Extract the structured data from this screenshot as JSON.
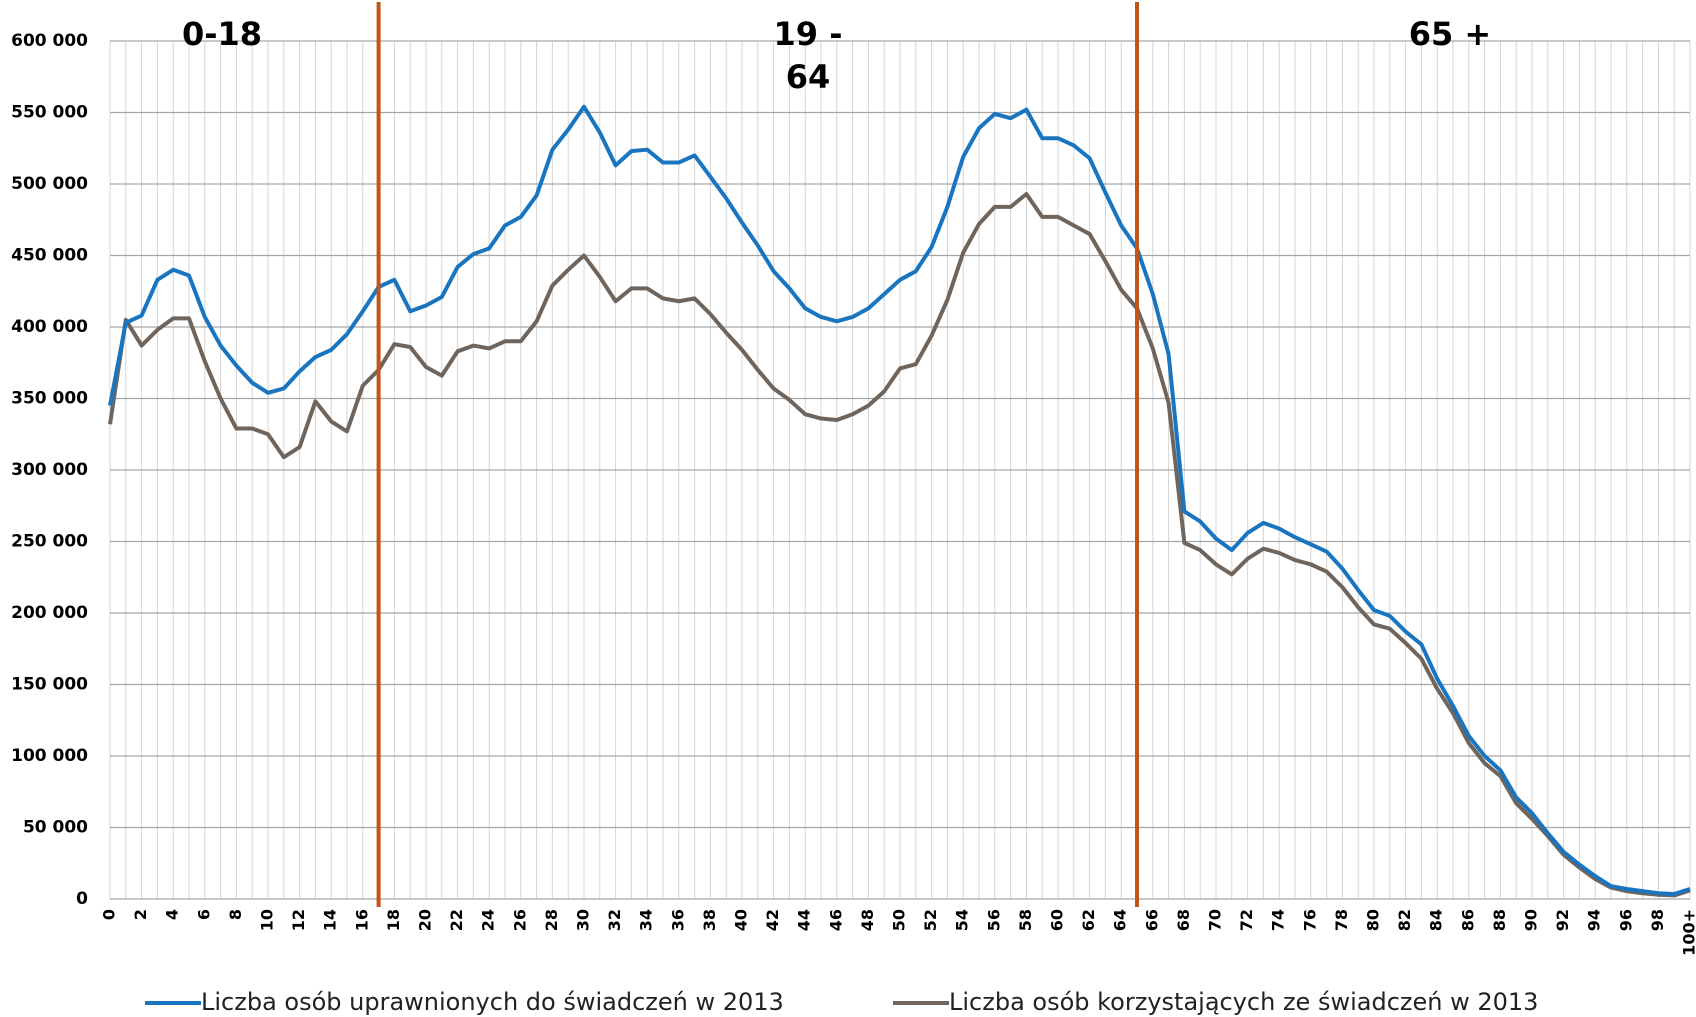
{
  "chart_data": {
    "type": "line",
    "categories": [
      "0",
      null,
      "2",
      null,
      "4",
      null,
      "6",
      null,
      "8",
      null,
      "10",
      null,
      "12",
      null,
      "14",
      null,
      "16",
      null,
      "18",
      null,
      "20",
      null,
      "22",
      null,
      "24",
      null,
      "26",
      null,
      "28",
      null,
      "30",
      null,
      "32",
      null,
      "34",
      null,
      "36",
      null,
      "38",
      null,
      "40",
      null,
      "42",
      null,
      "44",
      null,
      "46",
      null,
      "48",
      null,
      "50",
      null,
      "52",
      null,
      "54",
      null,
      "56",
      null,
      "58",
      null,
      "60",
      null,
      "62",
      null,
      "64",
      null,
      "66",
      null,
      "68",
      null,
      "70",
      null,
      "72",
      null,
      "74",
      null,
      "76",
      null,
      "78",
      null,
      "80",
      null,
      "82",
      null,
      "84",
      null,
      "86",
      null,
      "88",
      null,
      "90",
      null,
      "92",
      null,
      "94",
      null,
      "96",
      null,
      "98",
      null,
      "100+"
    ],
    "series": [
      {
        "name": "Liczba osób uprawnionych do świadczeń w 2013",
        "color": "#1a75c0",
        "values": [
          345000,
          403000,
          408000,
          433000,
          440000,
          436000,
          407000,
          387000,
          373000,
          361000,
          354000,
          357000,
          369000,
          379000,
          384000,
          395000,
          411000,
          428000,
          433000,
          411000,
          415000,
          421000,
          442000,
          451000,
          455000,
          471000,
          477000,
          492000,
          524000,
          538000,
          554000,
          536000,
          513000,
          523000,
          524000,
          515000,
          515000,
          520000,
          505000,
          490000,
          473000,
          457000,
          439000,
          427000,
          413000,
          407000,
          404000,
          407000,
          413000,
          423000,
          433000,
          439000,
          456000,
          484000,
          519000,
          539000,
          549000,
          546000,
          552000,
          532000,
          532000,
          527000,
          518000,
          494000,
          471000,
          455000,
          423000,
          381000,
          271000,
          264000,
          252000,
          244000,
          256000,
          263000,
          259000,
          253000,
          248000,
          243000,
          231000,
          216000,
          202000,
          198000,
          187000,
          178000,
          154000,
          135000,
          114000,
          100000,
          90000,
          71000,
          60000,
          46000,
          33000,
          24000,
          16000,
          9000,
          7000,
          5500,
          4000,
          3500,
          7000
        ]
      },
      {
        "name": "Liczba osób korzystających ze świadczeń w 2013",
        "color": "#6f655c",
        "values": [
          332000,
          405000,
          387000,
          398000,
          406000,
          406000,
          376000,
          350000,
          329000,
          329000,
          325000,
          309000,
          316000,
          348000,
          334000,
          327000,
          359000,
          370000,
          388000,
          386000,
          372000,
          366000,
          383000,
          387000,
          385000,
          390000,
          390000,
          404000,
          429000,
          440000,
          450000,
          435000,
          418000,
          427000,
          427000,
          420000,
          418000,
          420000,
          409000,
          396000,
          384000,
          370000,
          357000,
          349000,
          339000,
          336000,
          335000,
          339000,
          345000,
          355000,
          371000,
          374000,
          394000,
          419000,
          452000,
          472000,
          484000,
          484000,
          493000,
          477000,
          477000,
          471000,
          465000,
          446000,
          426000,
          413000,
          385000,
          347000,
          249000,
          244000,
          234000,
          227000,
          238000,
          245000,
          242000,
          237000,
          234000,
          229000,
          218000,
          204000,
          192000,
          189000,
          179000,
          168000,
          147000,
          130000,
          109000,
          95000,
          86000,
          67000,
          56000,
          44000,
          31000,
          22000,
          14000,
          8000,
          5500,
          4000,
          3000,
          2500,
          6000
        ]
      }
    ],
    "ylim": [
      0,
      600000
    ],
    "yticks": [
      0,
      {
        "value": 50000,
        "label": "50 000"
      },
      {
        "value": 100000,
        "label": "100 000"
      },
      {
        "value": 150000,
        "label": "150 000"
      },
      {
        "value": 200000,
        "label": "200 000"
      },
      {
        "value": 250000,
        "label": "250 000"
      },
      {
        "value": 300000,
        "label": "300 000"
      },
      {
        "value": 350000,
        "label": "350 000"
      },
      {
        "value": 400000,
        "label": "400 000"
      },
      {
        "value": 450000,
        "label": "450 000"
      },
      {
        "value": 500000,
        "label": "500 000"
      },
      {
        "value": 550000,
        "label": "550 000"
      },
      {
        "value": 600000,
        "label": "600 000"
      }
    ],
    "grid": true,
    "vlines": [
      17,
      65
    ],
    "vline_color": "#c0541a",
    "annotations": [
      {
        "lines": [
          "0-18"
        ]
      },
      {
        "lines": [
          "19 -",
          "64"
        ]
      },
      {
        "lines": [
          "65 +"
        ]
      }
    ],
    "legend": "bottom"
  }
}
